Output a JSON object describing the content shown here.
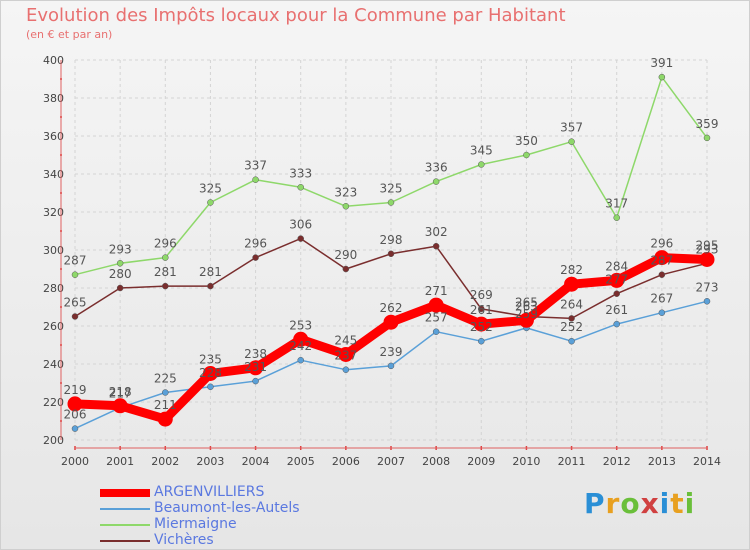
{
  "header": {
    "title": "Evolution des Impôts locaux pour la Commune par Habitant",
    "subtitle": "(en € et par an)"
  },
  "logo": {
    "text": "Proxiti",
    "colors": [
      "#2a8fd6",
      "#e8a020",
      "#6abf3a",
      "#d04040",
      "#2a8fd6",
      "#e8a020",
      "#6abf3a"
    ]
  },
  "chart_data": {
    "type": "line",
    "title": "Evolution des Impôts locaux pour la Commune par Habitant",
    "subtitle": "(en € et par an)",
    "x": [
      2000,
      2001,
      2002,
      2003,
      2004,
      2005,
      2006,
      2007,
      2008,
      2009,
      2010,
      2011,
      2012,
      2013,
      2014
    ],
    "ylim": [
      200,
      400
    ],
    "yticks": [
      200,
      220,
      240,
      260,
      280,
      300,
      320,
      340,
      360,
      380,
      400
    ],
    "grid": true,
    "legend": "bottom-left",
    "series": [
      {
        "name": "ARGENVILLIERS",
        "color": "#ff0000",
        "values": [
          219,
          218,
          211,
          235,
          238,
          253,
          245,
          262,
          271,
          261,
          263,
          282,
          284,
          296,
          295
        ],
        "labels": [
          "219",
          "218",
          "211",
          "235",
          "238",
          "253",
          "245",
          "262",
          "271",
          "261",
          "263",
          "282",
          "284",
          "296",
          "295"
        ]
      },
      {
        "name": "Beaumont-les-Autels",
        "color": "#5aa0d8",
        "values": [
          206,
          217,
          225,
          228,
          231,
          242,
          237,
          239,
          257,
          252,
          259,
          252,
          261,
          267,
          273
        ],
        "labels": [
          "206",
          "217",
          "225",
          "228",
          "231",
          "242",
          "237",
          "239",
          "257",
          "252",
          "259",
          "252",
          "261",
          "267",
          "273"
        ]
      },
      {
        "name": "Miermaigne",
        "color": "#8ed86a",
        "values": [
          287,
          293,
          296,
          325,
          337,
          333,
          323,
          325,
          336,
          345,
          350,
          357,
          317,
          391,
          359
        ],
        "labels": [
          "287",
          "293",
          "296",
          "325",
          "337",
          "333",
          "323",
          "325",
          "336",
          "345",
          "350",
          "357",
          "317",
          "391",
          "359"
        ]
      },
      {
        "name": "Vichères",
        "color": "#7a2e2e",
        "values": [
          265,
          280,
          281,
          281,
          296,
          306,
          290,
          298,
          302,
          269,
          265,
          264,
          277,
          287,
          293
        ],
        "labels": [
          "265",
          "280",
          "281",
          "281",
          "296",
          "306",
          "290",
          "298",
          "302",
          "269",
          "265",
          "264",
          "277",
          "287",
          "293"
        ]
      }
    ]
  }
}
